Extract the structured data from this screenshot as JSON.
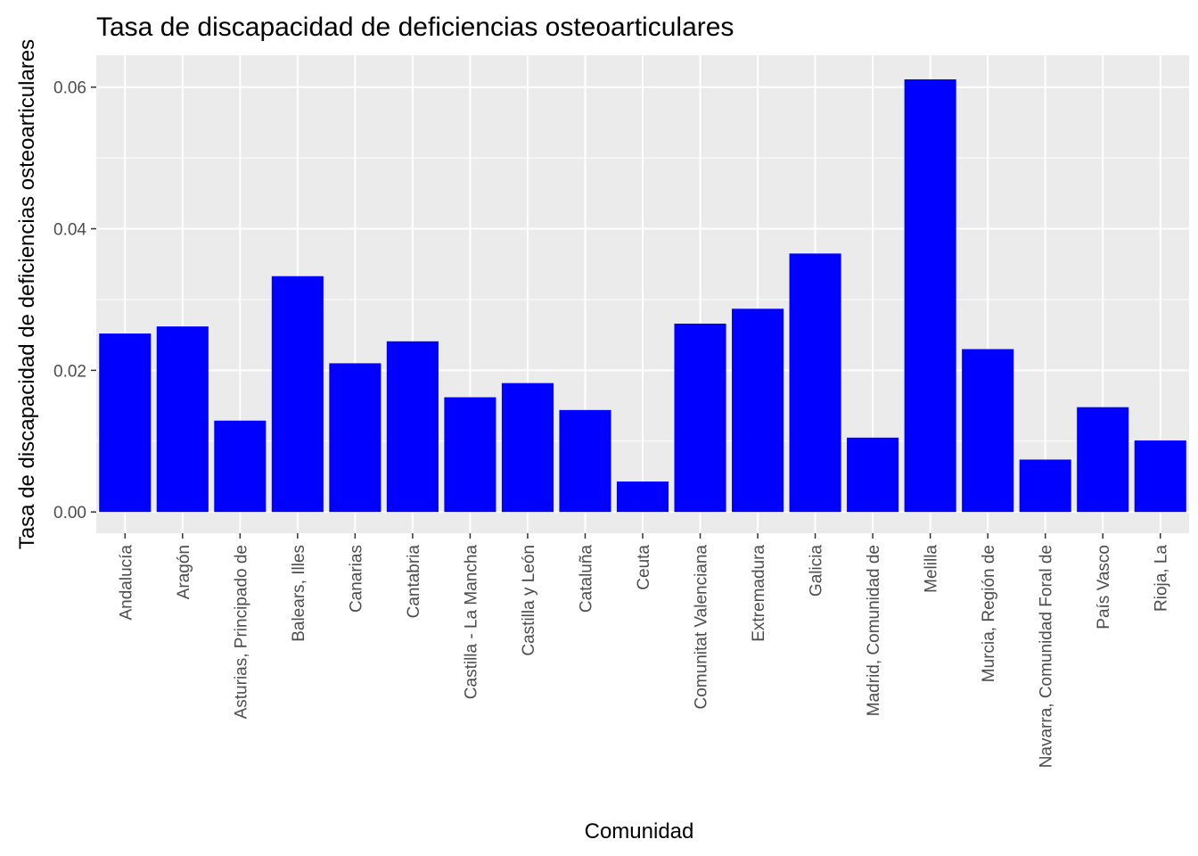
{
  "chart_data": {
    "type": "bar",
    "title": "Tasa de discapacidad de deficiencias osteoarticulares",
    "xlabel": "Comunidad",
    "ylabel": "Tasa de discapacidad de deficiencias osteoarticulares",
    "ylim": [
      -0.003,
      0.0645
    ],
    "yticks": [
      0,
      0.02,
      0.04,
      0.06
    ],
    "ytick_labels": [
      "0.00",
      "0.02",
      "0.04",
      "0.06"
    ],
    "grid": true,
    "legend": "none",
    "bar_color": "#0000FF",
    "panel_color": "#EBEBEB",
    "grid_color": "#FFFFFF",
    "categories": [
      "Andalucía",
      "Aragón",
      "Asturias, Principado de",
      "Balears, Illes",
      "Canarias",
      "Cantabria",
      "Castilla - La Mancha",
      "Castilla y León",
      "Cataluña",
      "Ceuta",
      "Comunitat Valenciana",
      "Extremadura",
      "Galicia",
      "Madrid, Comunidad de",
      "Melilla",
      "Murcia, Región de",
      "Navarra, Comunidad Foral de",
      "País Vasco",
      "Rioja, La"
    ],
    "values": [
      0.0252,
      0.0262,
      0.0129,
      0.0333,
      0.021,
      0.0241,
      0.0162,
      0.0182,
      0.0144,
      0.0043,
      0.0266,
      0.0287,
      0.0365,
      0.0105,
      0.0611,
      0.023,
      0.0074,
      0.0148,
      0.0101
    ]
  }
}
